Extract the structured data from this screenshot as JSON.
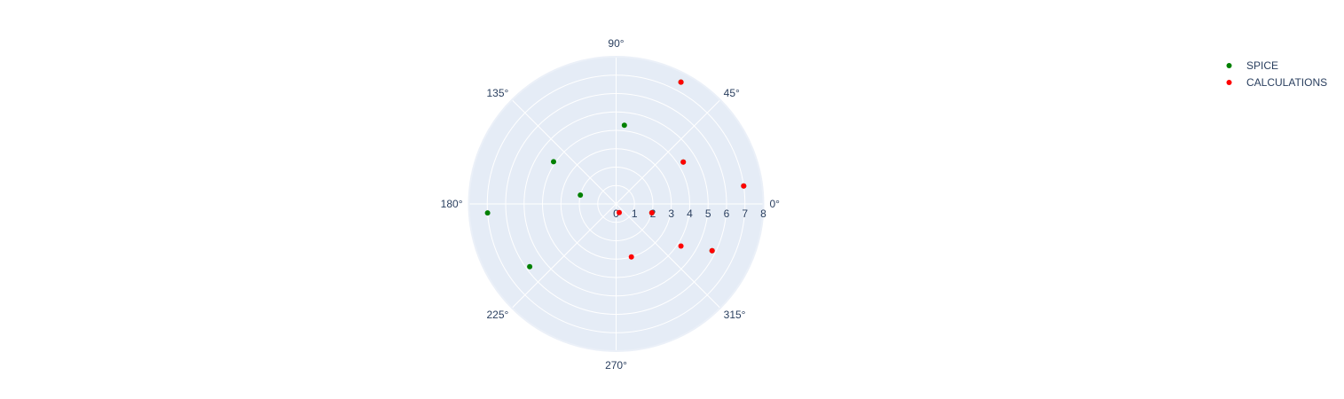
{
  "chart_data": {
    "type": "scatter",
    "subtype": "polar",
    "title": "",
    "radial_range": [
      0,
      8
    ],
    "radial_ticks": [
      "0",
      "1",
      "2",
      "3",
      "4",
      "5",
      "6",
      "7",
      "8"
    ],
    "angular_ticks": [
      {
        "deg": 0,
        "label": "0°"
      },
      {
        "deg": 45,
        "label": "45°"
      },
      {
        "deg": 90,
        "label": "90°"
      },
      {
        "deg": 135,
        "label": "135°"
      },
      {
        "deg": 180,
        "label": "180°"
      },
      {
        "deg": 225,
        "label": "225°"
      },
      {
        "deg": 270,
        "label": "270°"
      },
      {
        "deg": 315,
        "label": "315°"
      }
    ],
    "grid": true,
    "legend_position": "top-right",
    "series": [
      {
        "name": "SPICE",
        "color": "#008000",
        "points": [
          {
            "r": 7.5,
            "theta": 62
          },
          {
            "r": 2.0,
            "theta": 166
          },
          {
            "r": 4.1,
            "theta": 146
          },
          {
            "r": 7.0,
            "theta": 184
          },
          {
            "r": 5.8,
            "theta": 216
          },
          {
            "r": 5.8,
            "theta": 334
          },
          {
            "r": 4.3,
            "theta": 84
          },
          {
            "r": 4.3,
            "theta": 32
          },
          {
            "r": 7.0,
            "theta": 8
          },
          {
            "r": 2.0,
            "theta": 346
          }
        ]
      },
      {
        "name": "CALCULATIONS",
        "color": "#ff0000",
        "points": [
          {
            "r": 7.5,
            "theta": 62
          },
          {
            "r": 4.3,
            "theta": 32
          },
          {
            "r": 7.0,
            "theta": 8
          },
          {
            "r": 2.0,
            "theta": 346
          },
          {
            "r": 0.5,
            "theta": 290
          },
          {
            "r": 3.0,
            "theta": 286
          },
          {
            "r": 4.2,
            "theta": 327
          },
          {
            "r": 5.8,
            "theta": 334
          }
        ]
      }
    ]
  }
}
